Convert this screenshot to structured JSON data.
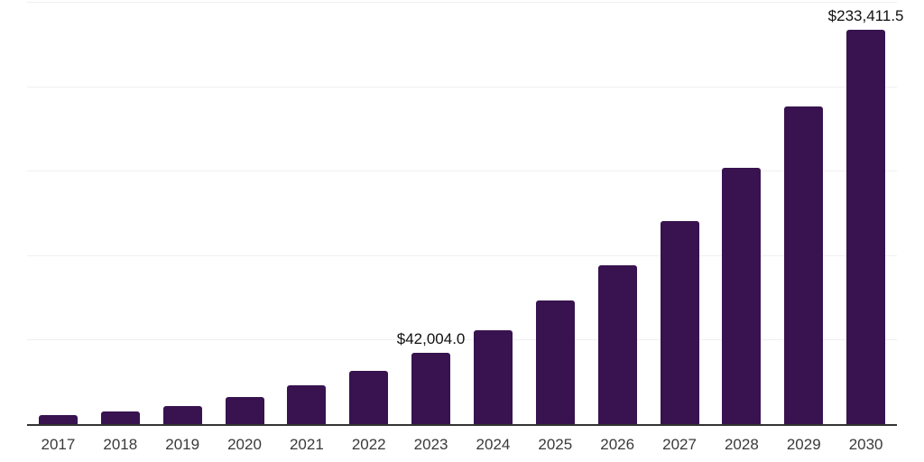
{
  "chart_data": {
    "type": "bar",
    "title": "",
    "xlabel": "",
    "ylabel": "",
    "categories": [
      "2017",
      "2018",
      "2019",
      "2020",
      "2021",
      "2022",
      "2023",
      "2024",
      "2025",
      "2026",
      "2027",
      "2028",
      "2029",
      "2030"
    ],
    "values": [
      5200,
      7300,
      10700,
      16200,
      22800,
      31300,
      42004.0,
      55600,
      73300,
      94200,
      120000,
      151900,
      188200,
      233411.5
    ],
    "bar_labels": [
      "",
      "",
      "",
      "",
      "",
      "",
      "$42,004.0",
      "",
      "",
      "",
      "",
      "",
      "",
      "$233,411.5"
    ],
    "ylim": [
      0,
      250000
    ],
    "gridline_values": [
      50000,
      100000,
      150000,
      200000,
      250000
    ],
    "grid": "horizontal-only",
    "legend": "none",
    "y_axis_tick_labels_visible": false,
    "colors": {
      "bar": "#38134f",
      "gridline": "#f0f0f0",
      "axis_line": "#333333",
      "x_tick_label": "#3a3a3a",
      "data_label": "#111111",
      "background": "#ffffff"
    }
  }
}
